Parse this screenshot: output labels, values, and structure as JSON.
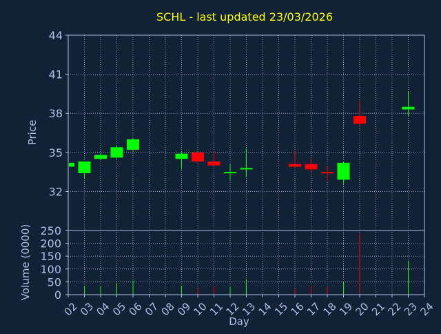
{
  "chart_data": {
    "type": "candlestick",
    "title": "SCHL - last updated 23/03/2026",
    "price_panel": {
      "ylabel": "Price",
      "ylim": [
        29,
        44
      ],
      "yticks": [
        32,
        35,
        38,
        41,
        44
      ]
    },
    "volume_panel": {
      "ylabel": "Volume (0000)",
      "ylim": [
        0,
        250
      ],
      "yticks": [
        0,
        50,
        100,
        150,
        200,
        250
      ]
    },
    "xlabel": "Day",
    "xtick_labels": [
      "02",
      "03",
      "04",
      "05",
      "06",
      "07",
      "08",
      "09",
      "10",
      "11",
      "12",
      "13",
      "14",
      "15",
      "16",
      "17",
      "18",
      "19",
      "20",
      "21",
      "22",
      "23",
      "24"
    ],
    "grid": true,
    "colors": {
      "background": "#112236",
      "title": "#ffff00",
      "axis_text": "#a9c1e6",
      "axis_line": "#a9c1e6",
      "grid": "#a9c1e6",
      "up": "#00ff00",
      "down": "#ff0000"
    },
    "candles": [
      {
        "day": "02",
        "open": 33.9,
        "high": 34.3,
        "low": 33.8,
        "close": 34.2,
        "volume": 20
      },
      {
        "day": "03",
        "open": 33.4,
        "high": 34.3,
        "low": 33.0,
        "close": 34.3,
        "volume": 35
      },
      {
        "day": "04",
        "open": 34.5,
        "high": 34.9,
        "low": 34.4,
        "close": 34.8,
        "volume": 35
      },
      {
        "day": "05",
        "open": 34.6,
        "high": 35.5,
        "low": 34.5,
        "close": 35.4,
        "volume": 45
      },
      {
        "day": "06",
        "open": 35.2,
        "high": 36.1,
        "low": 35.1,
        "close": 36.0,
        "volume": 55
      },
      {
        "day": "09",
        "open": 34.5,
        "high": 35.0,
        "low": 33.7,
        "close": 34.9,
        "volume": 35
      },
      {
        "day": "10",
        "open": 35.0,
        "high": 35.0,
        "low": 34.2,
        "close": 34.3,
        "volume": 25
      },
      {
        "day": "11",
        "open": 34.3,
        "high": 35.0,
        "low": 34.0,
        "close": 34.0,
        "volume": 30
      },
      {
        "day": "12",
        "open": 33.4,
        "high": 34.1,
        "low": 32.9,
        "close": 33.5,
        "volume": 30
      },
      {
        "day": "13",
        "open": 33.7,
        "high": 35.3,
        "low": 33.1,
        "close": 33.8,
        "volume": 60
      },
      {
        "day": "16",
        "open": 34.1,
        "high": 35.1,
        "low": 33.8,
        "close": 33.9,
        "volume": 25
      },
      {
        "day": "17",
        "open": 34.1,
        "high": 34.5,
        "low": 33.5,
        "close": 33.7,
        "volume": 35
      },
      {
        "day": "18",
        "open": 33.5,
        "high": 34.0,
        "low": 32.8,
        "close": 33.4,
        "volume": 30
      },
      {
        "day": "19",
        "open": 32.9,
        "high": 34.3,
        "low": 32.6,
        "close": 34.2,
        "volume": 50
      },
      {
        "day": "20",
        "open": 37.8,
        "high": 39.0,
        "low": 37.0,
        "close": 37.2,
        "volume": 240
      },
      {
        "day": "23",
        "open": 38.3,
        "high": 39.7,
        "low": 37.8,
        "close": 38.5,
        "volume": 130
      }
    ]
  }
}
